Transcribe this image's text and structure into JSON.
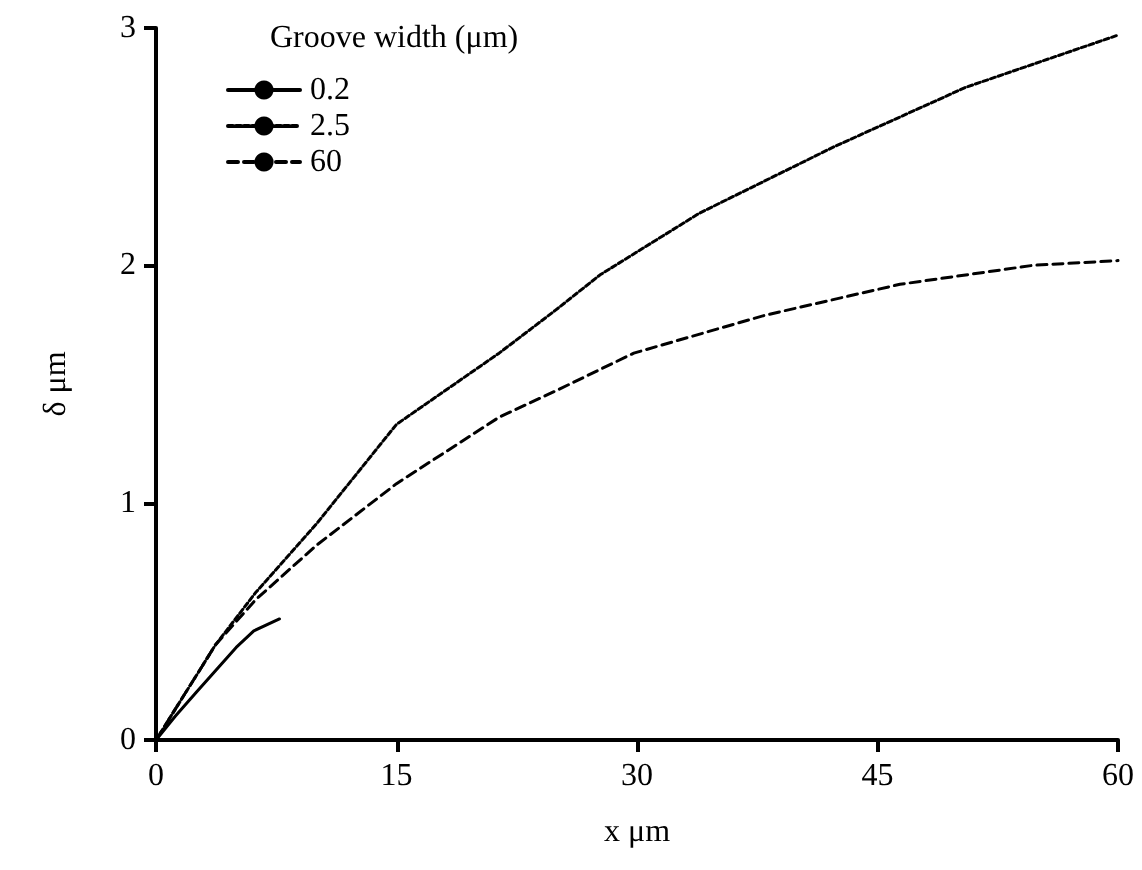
{
  "chart_data": {
    "type": "line",
    "xlabel": "x μm",
    "ylabel": "δ μm",
    "legend_title": "Groove width (μm)",
    "legend": "top left",
    "grid": false,
    "marker": "none",
    "xlim": [
      0,
      60
    ],
    "xticks": [
      0,
      15,
      30,
      45,
      60
    ],
    "ylim": [
      0,
      3
    ],
    "yticks": [
      0,
      1,
      2,
      3
    ],
    "series": [
      {
        "name": "0.2",
        "color": "#000000",
        "line_style": "solid",
        "x": [
          0,
          1.2,
          2.5,
          5,
          6.1,
          7.7
        ],
        "values": [
          0,
          0.1,
          0.2,
          0.39,
          0.46,
          0.51
        ]
      },
      {
        "name": "2.5",
        "color": "#000000",
        "line_style": "dotted",
        "x": [
          0,
          2.5,
          3.7,
          6.2,
          10,
          15,
          21.4,
          24.9,
          27.7,
          33.9,
          42.3,
          50.5,
          60
        ],
        "values": [
          0,
          0.27,
          0.4,
          0.62,
          0.91,
          1.33,
          1.63,
          1.81,
          1.96,
          2.22,
          2.5,
          2.75,
          2.97
        ]
      },
      {
        "name": "60",
        "color": "#000000",
        "line_style": "dashed",
        "x": [
          0,
          2.5,
          3.7,
          6.2,
          10,
          15,
          21.4,
          24.9,
          29.8,
          38,
          46.4,
          54.7,
          60
        ],
        "values": [
          0,
          0.27,
          0.4,
          0.59,
          0.82,
          1.08,
          1.36,
          1.47,
          1.63,
          1.79,
          1.92,
          2.0,
          2.02
        ]
      }
    ]
  }
}
